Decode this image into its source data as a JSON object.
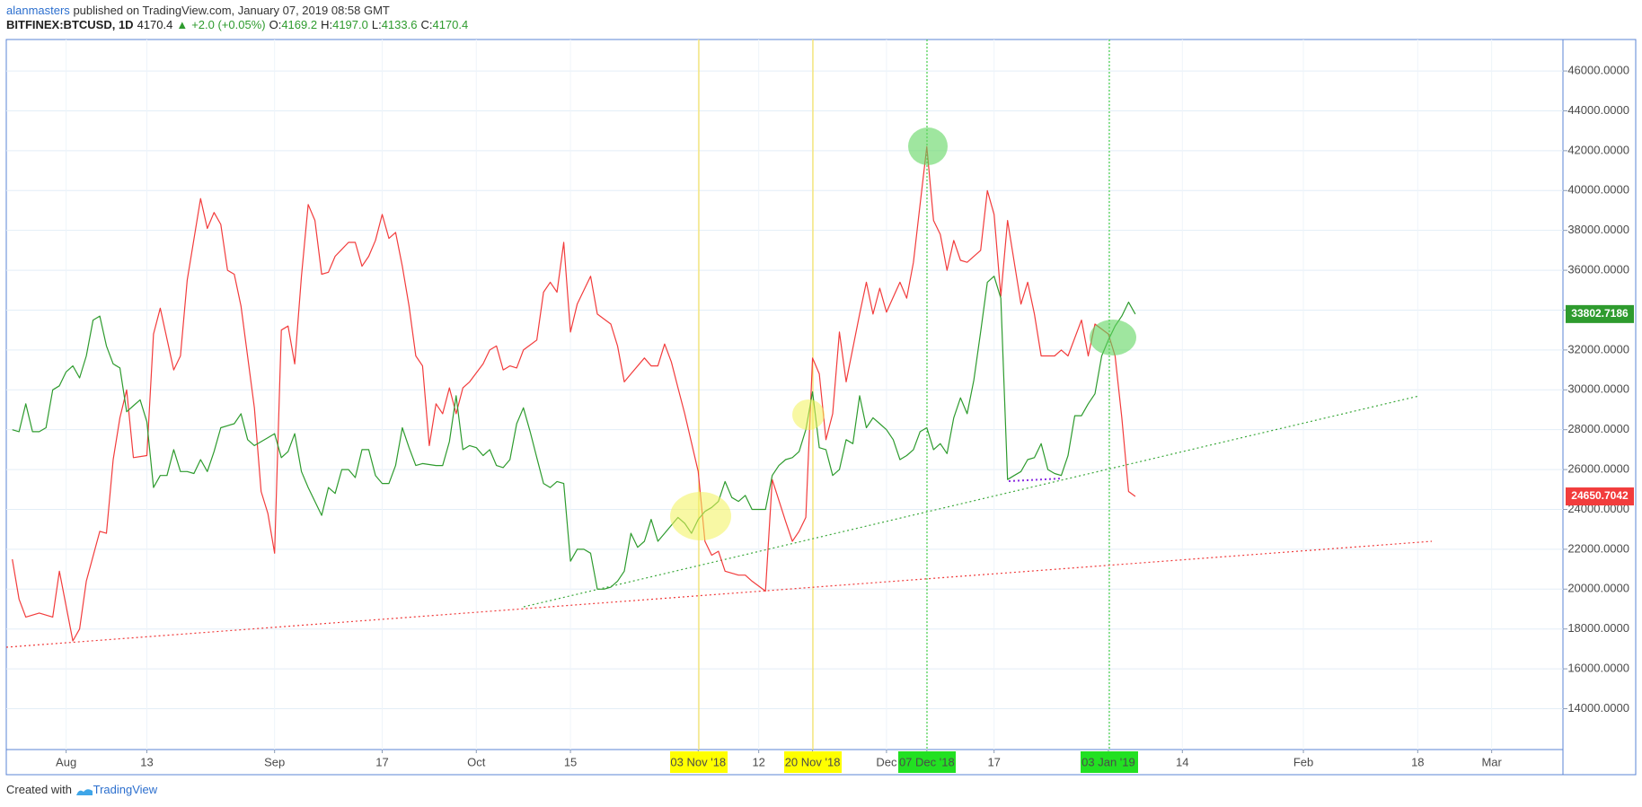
{
  "header": {
    "author": "alanmasters",
    "published": "published on TradingView.com, January 07, 2019 08:58 GMT",
    "symbol": "BITFINEX:BTCUSD, 1D",
    "last": "4170.4",
    "arrow": "▲",
    "change": "+2.0 (+0.05%)",
    "ohlc": [
      {
        "label": "O:",
        "value": "4169.2"
      },
      {
        "label": "H:",
        "value": "4197.0"
      },
      {
        "label": "L:",
        "value": "4133.6"
      },
      {
        "label": "C:",
        "value": "4170.4"
      }
    ]
  },
  "chart_data": {
    "type": "line",
    "xlim": [
      -8.9,
      222.6
    ],
    "xticks": [
      {
        "value": 0,
        "label": "Aug"
      },
      {
        "value": 12,
        "label": "13"
      },
      {
        "value": 31,
        "label": "Sep"
      },
      {
        "value": 47,
        "label": "17"
      },
      {
        "value": 61,
        "label": "Oct"
      },
      {
        "value": 75,
        "label": "15"
      },
      {
        "value": 94,
        "label": "03 Nov '18"
      },
      {
        "value": 103,
        "label": "12"
      },
      {
        "value": 111,
        "label": "20 Nov '18"
      },
      {
        "value": 122,
        "label": "Dec"
      },
      {
        "value": 128,
        "label": "07 Dec '18"
      },
      {
        "value": 138,
        "label": "17"
      },
      {
        "value": 155,
        "label": "03 Jan '19"
      },
      {
        "value": 166,
        "label": "14"
      },
      {
        "value": 184,
        "label": "Feb"
      },
      {
        "value": 201,
        "label": "18"
      },
      {
        "value": 212,
        "label": "Mar"
      }
    ],
    "ylim": [
      11950,
      47580
    ],
    "yticks": [
      {
        "value": 14000,
        "label": "14000.0000"
      },
      {
        "value": 16000,
        "label": "16000.0000"
      },
      {
        "value": 18000,
        "label": "18000.0000"
      },
      {
        "value": 20000,
        "label": "20000.0000"
      },
      {
        "value": 22000,
        "label": "22000.0000"
      },
      {
        "value": 24000,
        "label": "24000.0000"
      },
      {
        "value": 26000,
        "label": "26000.0000"
      },
      {
        "value": 28000,
        "label": "28000.0000"
      },
      {
        "value": 30000,
        "label": "30000.0000"
      },
      {
        "value": 32000,
        "label": "32000.0000"
      },
      {
        "value": 34000,
        "label": "34000.0000"
      },
      {
        "value": 36000,
        "label": "36000.0000"
      },
      {
        "value": 38000,
        "label": "38000.0000"
      },
      {
        "value": 40000,
        "label": "40000.0000"
      },
      {
        "value": 42000,
        "label": "42000.0000"
      },
      {
        "value": 44000,
        "label": "44000.0000"
      },
      {
        "value": 46000,
        "label": "46000.0000"
      }
    ],
    "grid": true,
    "series": [
      {
        "color": "#f23c3c",
        "last_label": "24650.7042",
        "x": [
          -8,
          -7,
          -6,
          -4,
          -2,
          -1,
          1,
          2,
          3,
          5,
          6,
          7,
          8,
          9,
          10,
          12,
          13,
          14,
          16,
          17,
          18,
          20,
          21,
          22,
          23,
          24,
          25,
          26,
          28,
          29,
          30,
          31,
          32,
          33,
          34,
          35,
          36,
          37,
          38,
          39,
          40,
          42,
          43,
          44,
          45,
          46,
          47,
          48,
          49,
          50,
          51,
          52,
          53,
          54,
          55,
          56,
          57,
          58,
          59,
          60,
          62,
          63,
          64,
          65,
          66,
          67,
          68,
          70,
          71,
          72,
          73,
          74,
          75,
          76,
          78,
          79,
          81,
          82,
          83,
          84,
          86,
          87,
          88,
          89,
          90,
          91,
          92,
          94,
          95,
          96,
          97,
          98,
          100,
          101,
          102,
          104,
          105,
          107,
          108,
          109,
          110,
          111,
          112,
          113,
          114,
          115,
          116,
          118,
          119,
          120,
          121,
          122,
          124,
          125,
          126,
          127,
          128,
          129,
          130,
          131,
          132,
          133,
          134,
          136,
          137,
          138,
          139,
          140,
          142,
          143,
          144,
          145,
          147,
          148,
          149,
          151,
          152,
          153,
          155,
          156,
          157,
          158,
          159
        ],
        "values": [
          21500,
          19500,
          18600,
          18800,
          18600,
          20900,
          17400,
          18000,
          20400,
          22900,
          22800,
          26500,
          28600,
          30000,
          26600,
          26700,
          32800,
          34100,
          31000,
          31700,
          35500,
          39600,
          38100,
          38900,
          38300,
          36000,
          35800,
          34200,
          29100,
          24900,
          23800,
          21800,
          33000,
          33200,
          31300,
          35700,
          39300,
          38500,
          35800,
          35900,
          36700,
          37400,
          37400,
          36200,
          36700,
          37500,
          38800,
          37600,
          37900,
          36200,
          34200,
          31700,
          31200,
          27200,
          29300,
          28800,
          30100,
          28800,
          30100,
          30400,
          31300,
          32000,
          32200,
          31000,
          31200,
          31100,
          32000,
          32500,
          34900,
          35400,
          34900,
          37400,
          32900,
          34300,
          35700,
          33800,
          33300,
          32200,
          30400,
          30800,
          31600,
          31200,
          31200,
          32300,
          31400,
          30100,
          28800,
          25900,
          22400,
          21700,
          21900,
          20900,
          20700,
          20700,
          20400,
          19900,
          25500,
          23400,
          22400,
          22900,
          23600,
          31600,
          30800,
          27500,
          28800,
          32900,
          30400,
          33800,
          35400,
          33800,
          35100,
          33900,
          35400,
          34600,
          36400,
          39300,
          42200,
          38500,
          37800,
          36000,
          37500,
          36500,
          36400,
          37000,
          40000,
          38800,
          34700,
          38500,
          34300,
          35400,
          33800,
          31700,
          31700,
          32000,
          31700,
          33500,
          31700,
          33300,
          32800,
          31700,
          28600,
          24900,
          24650.7042
        ]
      },
      {
        "color": "#2e9b2e",
        "last_label": "33802.7186",
        "x": [
          -8,
          -7,
          -6,
          -5,
          -4,
          -3,
          -2,
          -1,
          0,
          1,
          2,
          3,
          4,
          5,
          6,
          7,
          8,
          9,
          10,
          11,
          12,
          13,
          14,
          15,
          16,
          17,
          18,
          19,
          20,
          21,
          22,
          23,
          25,
          26,
          27,
          28,
          30,
          31,
          32,
          33,
          34,
          35,
          36,
          37,
          38,
          39,
          40,
          41,
          42,
          43,
          44,
          45,
          46,
          47,
          48,
          49,
          50,
          51,
          52,
          53,
          55,
          56,
          57,
          58,
          59,
          60,
          61,
          62,
          63,
          64,
          65,
          66,
          67,
          68,
          69,
          70,
          71,
          72,
          73,
          74,
          75,
          76,
          77,
          78,
          79,
          80,
          81,
          82,
          83,
          84,
          85,
          86,
          87,
          88,
          89,
          91,
          92,
          93,
          94,
          95,
          96,
          97,
          98,
          99,
          100,
          101,
          102,
          103,
          104,
          105,
          106,
          107,
          108,
          109,
          110,
          111,
          112,
          113,
          114,
          115,
          116,
          117,
          118,
          119,
          120,
          121,
          122,
          123,
          124,
          125,
          126,
          127,
          128,
          129,
          130,
          131,
          132,
          133,
          134,
          135,
          136,
          137,
          138,
          139,
          140,
          141,
          142,
          143,
          144,
          145,
          146,
          147,
          148,
          149,
          150,
          151,
          152,
          153,
          154,
          155,
          156,
          157,
          158,
          159
        ],
        "values": [
          28000,
          27900,
          29300,
          27900,
          27900,
          28100,
          30000,
          30200,
          30900,
          31200,
          30600,
          31700,
          33500,
          33700,
          32200,
          31300,
          31100,
          28900,
          29200,
          29500,
          28400,
          25100,
          25700,
          25700,
          27000,
          25900,
          25900,
          25800,
          26500,
          25900,
          26900,
          28100,
          28300,
          28800,
          27500,
          27200,
          27600,
          27800,
          26600,
          26900,
          27800,
          25900,
          25100,
          24400,
          23700,
          25100,
          24800,
          26000,
          26000,
          25600,
          27000,
          27000,
          25700,
          25300,
          25300,
          26200,
          28100,
          27100,
          26200,
          26300,
          26200,
          26200,
          27400,
          29700,
          27000,
          27200,
          27100,
          26700,
          27000,
          26200,
          26100,
          26500,
          28300,
          29100,
          27900,
          26600,
          25300,
          25100,
          25400,
          25300,
          21400,
          22000,
          22000,
          21800,
          20000,
          20000,
          20100,
          20400,
          20900,
          22800,
          22100,
          22400,
          23500,
          22400,
          22800,
          23600,
          23300,
          22800,
          23500,
          23900,
          24100,
          24400,
          25400,
          24600,
          24400,
          24700,
          24000,
          24000,
          24000,
          25700,
          26200,
          26500,
          26600,
          26900,
          28000,
          29900,
          27100,
          27000,
          25700,
          26000,
          27500,
          27300,
          29700,
          28100,
          28600,
          28300,
          28000,
          27500,
          26500,
          26700,
          27000,
          27900,
          28100,
          27000,
          27300,
          26800,
          28600,
          29600,
          28800,
          30500,
          32900,
          35400,
          35700,
          34600,
          25500,
          25700,
          25900,
          26500,
          26600,
          27300,
          26000,
          25800,
          25700,
          26700,
          28700,
          28700,
          29300,
          29800,
          31700,
          32500,
          33200,
          33700,
          34400,
          33802.7186
        ]
      }
    ]
  },
  "footer": {
    "created_with": "Created with",
    "brand": "TradingView"
  }
}
